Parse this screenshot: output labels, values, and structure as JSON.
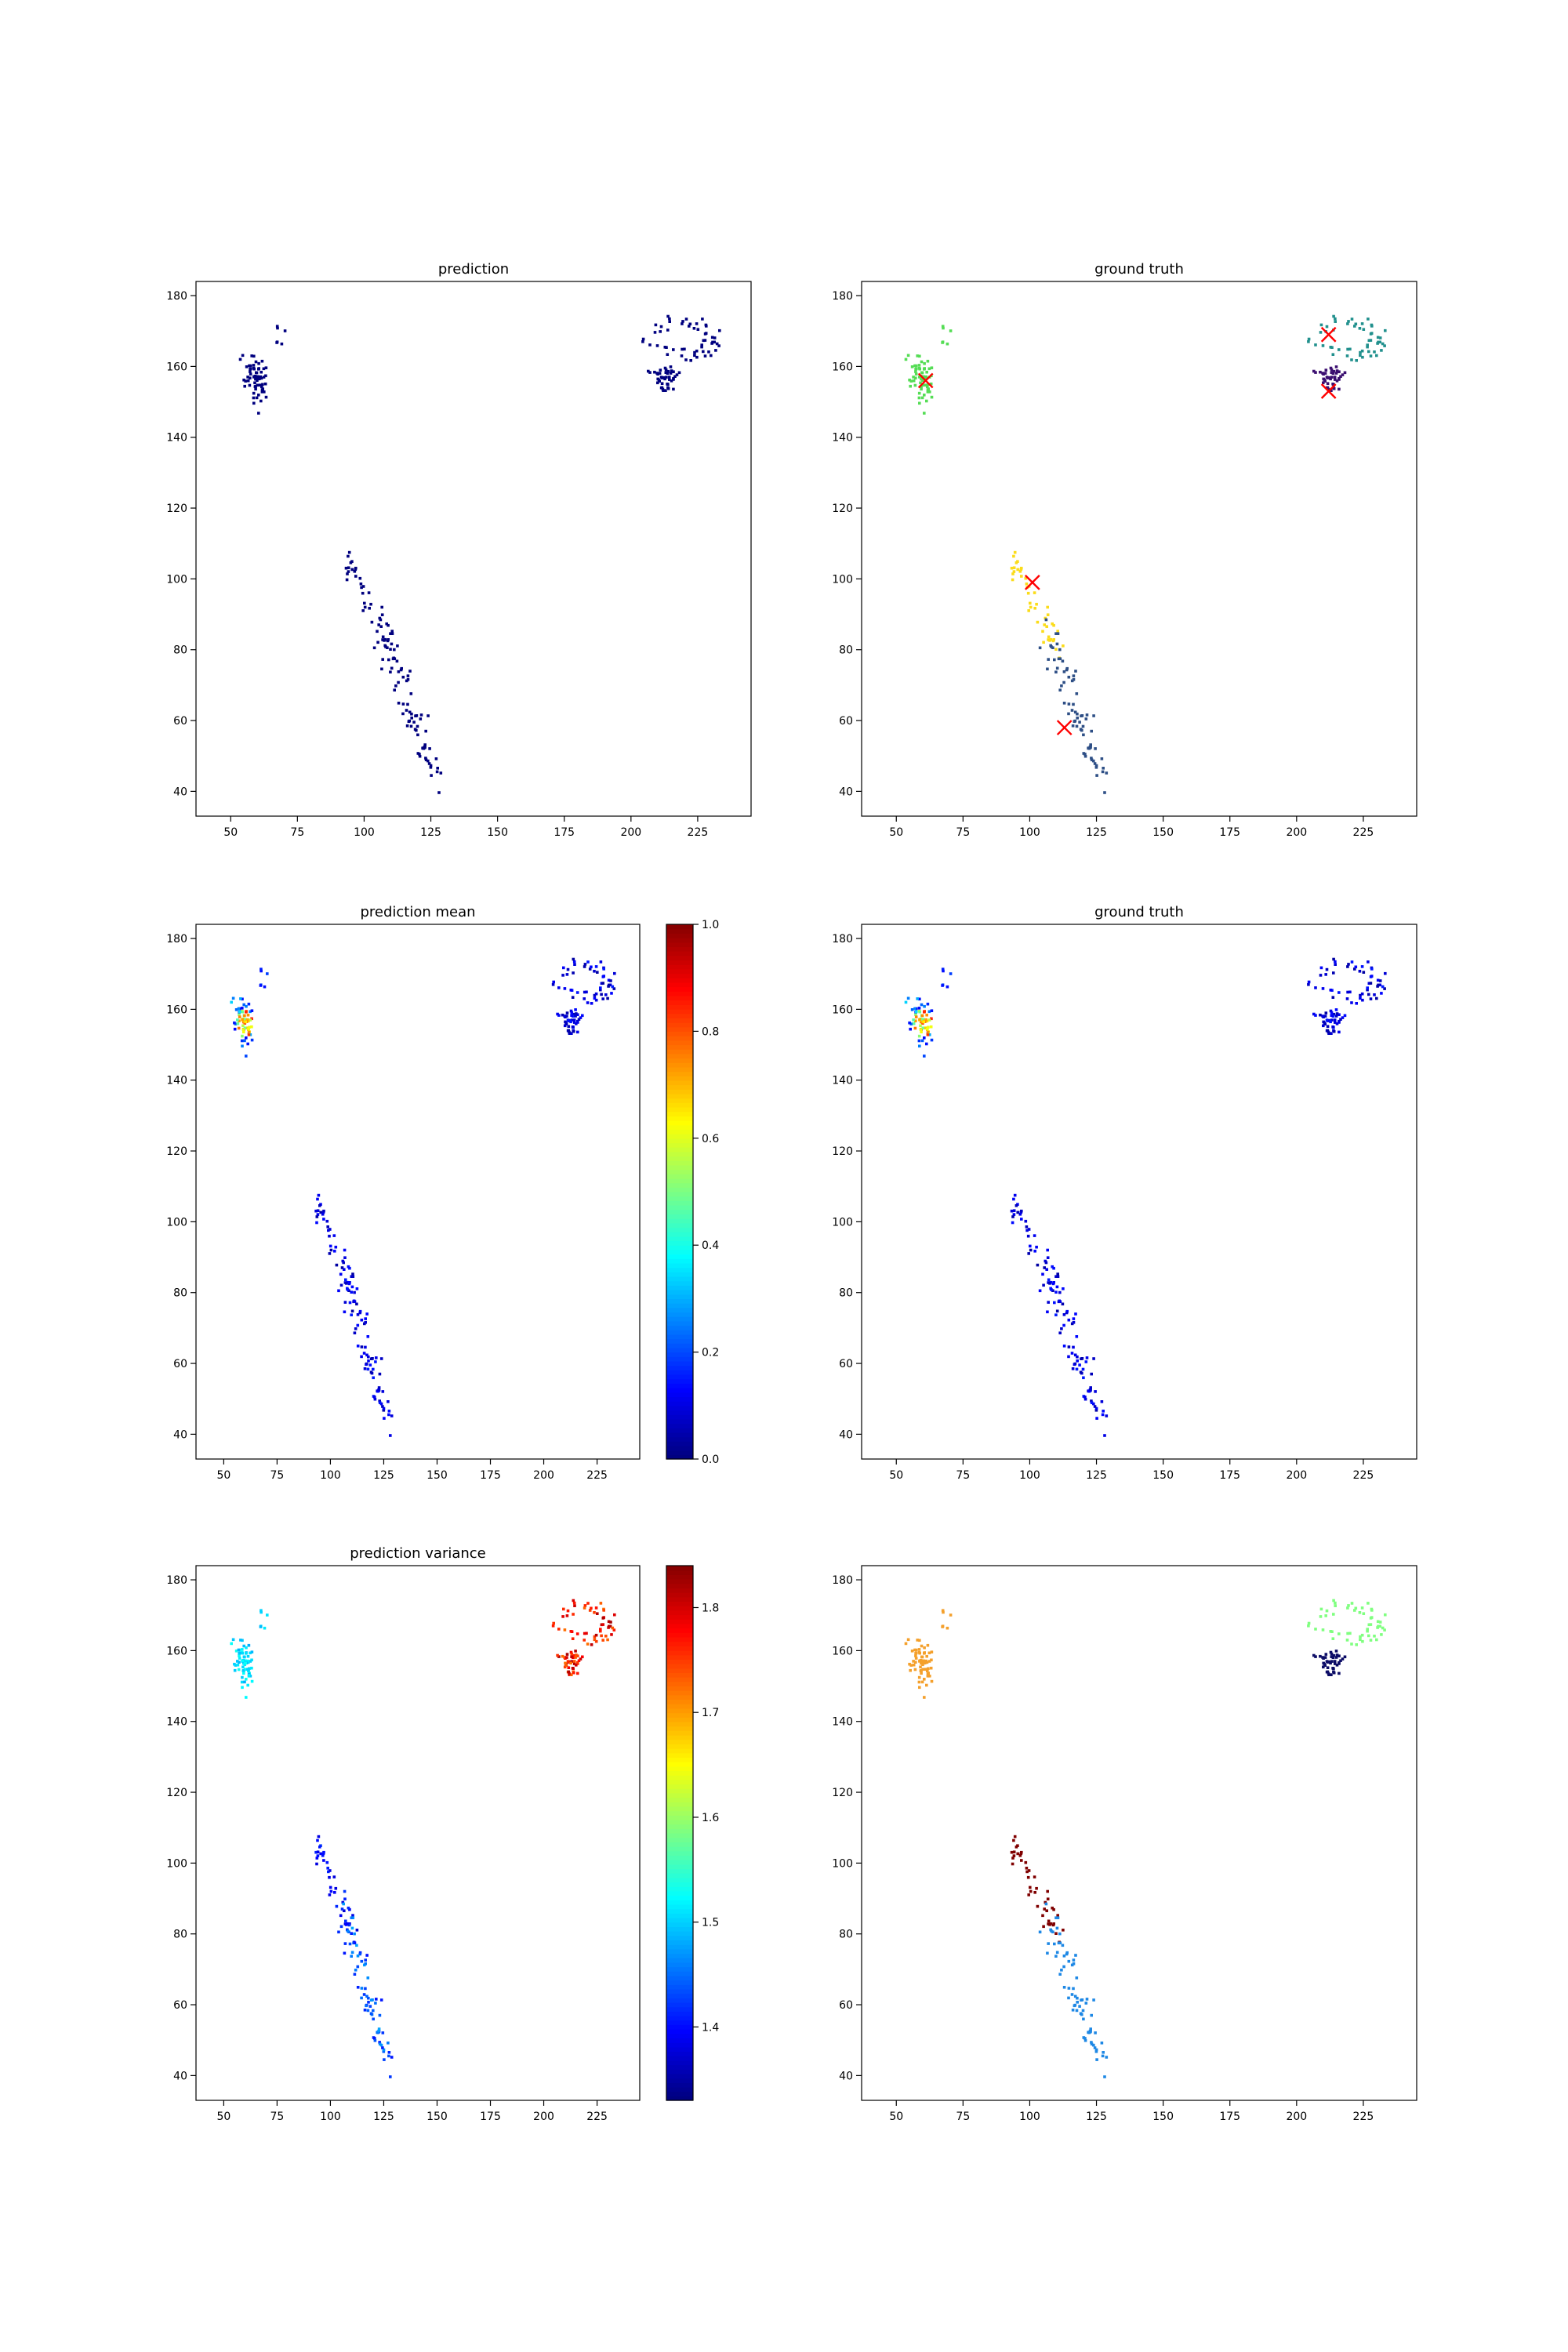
{
  "chart_data": [
    {
      "type": "scatter",
      "title": "prediction",
      "xlim": [
        37,
        245
      ],
      "ylim": [
        33,
        184
      ],
      "xticks": [
        50,
        75,
        100,
        125,
        150,
        175,
        200,
        225
      ],
      "yticks": [
        40,
        60,
        80,
        100,
        120,
        140,
        160,
        180
      ],
      "color_mode": "single",
      "color": "#00007f",
      "colorbar": null,
      "markers": []
    },
    {
      "type": "scatter",
      "title": "ground truth",
      "xlim": [
        37,
        245
      ],
      "ylim": [
        33,
        184
      ],
      "xticks": [
        50,
        75,
        100,
        125,
        150,
        175,
        200,
        225
      ],
      "yticks": [
        40,
        60,
        80,
        100,
        120,
        140,
        160,
        180
      ],
      "color_mode": "cluster",
      "cluster_colors": {
        "A": "#55dd55",
        "B": "#fbdc1a",
        "C": "#2e4f86",
        "D": "#21908d",
        "E": "#3b0f70"
      },
      "colorbar": null,
      "markers": [
        {
          "x": 61,
          "y": 156,
          "label": "x"
        },
        {
          "x": 101,
          "y": 99,
          "label": "x"
        },
        {
          "x": 113,
          "y": 58,
          "label": "x"
        },
        {
          "x": 212,
          "y": 169,
          "label": "x"
        },
        {
          "x": 212,
          "y": 153,
          "label": "x"
        }
      ]
    },
    {
      "type": "scatter",
      "title": "prediction mean",
      "xlim": [
        37,
        245
      ],
      "ylim": [
        33,
        184
      ],
      "xticks": [
        50,
        75,
        100,
        125,
        150,
        175,
        200,
        225
      ],
      "yticks": [
        40,
        60,
        80,
        100,
        120,
        140,
        160,
        180
      ],
      "color_mode": "mean",
      "colorbar": {
        "min": 0.0,
        "max": 1.0,
        "ticks": [
          "0.0",
          "0.2",
          "0.4",
          "0.6",
          "0.8",
          "1.0"
        ],
        "tick_values": [
          0.0,
          0.2,
          0.4,
          0.6,
          0.8,
          1.0
        ]
      },
      "markers": []
    },
    {
      "type": "scatter",
      "title": "ground truth",
      "xlim": [
        37,
        245
      ],
      "ylim": [
        33,
        184
      ],
      "xticks": [
        50,
        75,
        100,
        125,
        150,
        175,
        200,
        225
      ],
      "yticks": [
        40,
        60,
        80,
        100,
        120,
        140,
        160,
        180
      ],
      "color_mode": "mean",
      "colorbar": null,
      "markers": []
    },
    {
      "type": "scatter",
      "title": "prediction variance",
      "xlim": [
        37,
        245
      ],
      "ylim": [
        33,
        184
      ],
      "xticks": [
        50,
        75,
        100,
        125,
        150,
        175,
        200,
        225
      ],
      "yticks": [
        40,
        60,
        80,
        100,
        120,
        140,
        160,
        180
      ],
      "color_mode": "variance",
      "colorbar": {
        "min": 1.33,
        "max": 1.84,
        "ticks": [
          "1.4",
          "1.5",
          "1.6",
          "1.7",
          "1.8"
        ],
        "tick_values": [
          1.4,
          1.5,
          1.6,
          1.7,
          1.8
        ]
      },
      "markers": []
    },
    {
      "type": "scatter",
      "title": "",
      "xlim": [
        37,
        245
      ],
      "ylim": [
        33,
        184
      ],
      "xticks": [
        50,
        75,
        100,
        125,
        150,
        175,
        200,
        225
      ],
      "yticks": [
        40,
        60,
        80,
        100,
        120,
        140,
        160,
        180
      ],
      "color_mode": "cluster",
      "cluster_colors": {
        "A": "#f4a02c",
        "B": "#7f0000",
        "C": "#1e88e5",
        "D": "#80ff80",
        "E": "#0c0c66"
      },
      "colorbar": null,
      "markers": []
    }
  ]
}
